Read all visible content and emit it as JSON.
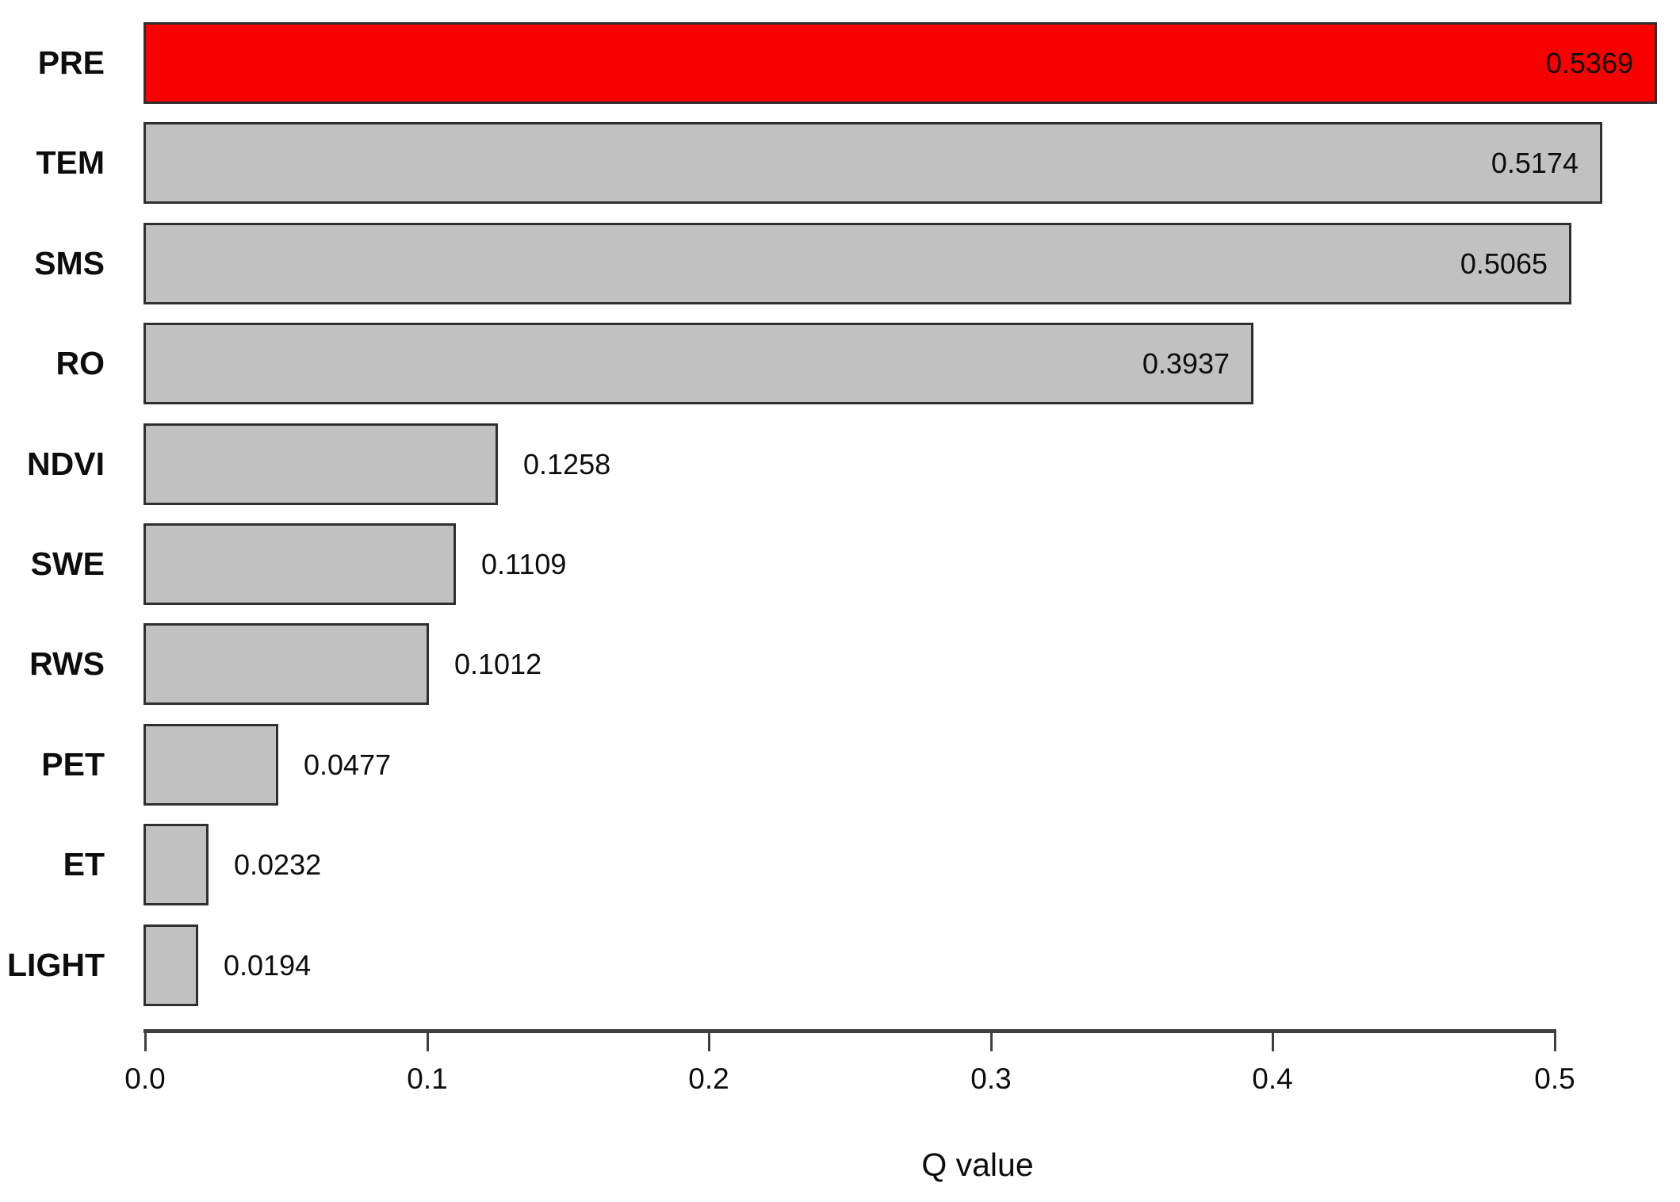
{
  "chart_data": {
    "type": "bar",
    "orientation": "horizontal",
    "title": "",
    "xlabel": "Q value",
    "ylabel": "",
    "categories": [
      "PRE",
      "TEM",
      "SMS",
      "RO",
      "NDVI",
      "SWE",
      "RWS",
      "PET",
      "ET",
      "LIGHT"
    ],
    "values": [
      0.5369,
      0.5174,
      0.5065,
      0.3937,
      0.1258,
      0.1109,
      0.1012,
      0.0477,
      0.0232,
      0.0194
    ],
    "value_labels": [
      "0.5369",
      "0.5174",
      "0.5065",
      "0.3937",
      "0.1258",
      "0.1109",
      "0.1012",
      "0.0477",
      "0.0232",
      "0.0194"
    ],
    "bar_colors": [
      "#f80000",
      "#c1c1c1",
      "#c1c1c1",
      "#c1c1c1",
      "#c1c1c1",
      "#c1c1c1",
      "#c1c1c1",
      "#c1c1c1",
      "#c1c1c1",
      "#c1c1c1"
    ],
    "value_label_positions": [
      "inside",
      "inside",
      "inside",
      "inside",
      "outside",
      "outside",
      "outside",
      "outside",
      "outside",
      "outside"
    ],
    "highlight_color": "#f80000",
    "default_bar_color": "#c1c1c1",
    "bar_border_color": "#2f2f2f",
    "axis_color": "#3f3f3f",
    "text_color": "#0d0d0d",
    "x_ticks": [
      0.0,
      0.1,
      0.2,
      0.3,
      0.4,
      0.5
    ],
    "x_tick_labels": [
      "0.0",
      "0.1",
      "0.2",
      "0.3",
      "0.4",
      "0.5"
    ],
    "xlim": [
      0.0,
      0.545
    ],
    "grid": false,
    "legend": null
  }
}
